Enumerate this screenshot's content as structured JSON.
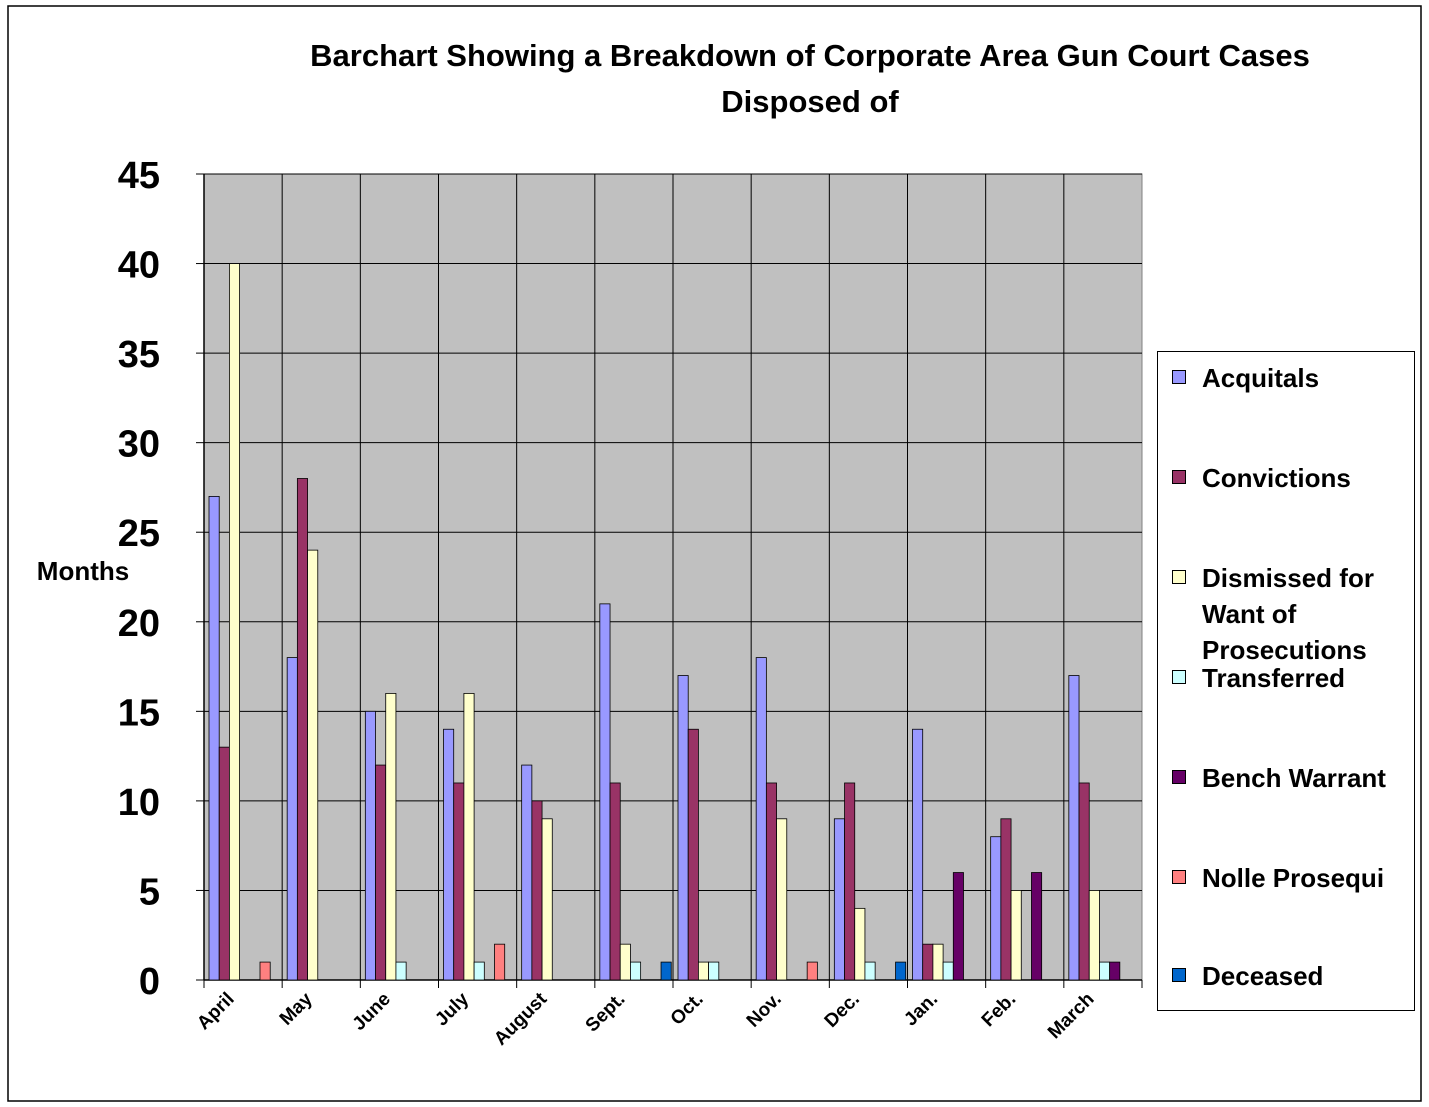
{
  "chart_data": {
    "type": "bar",
    "title": "Barchart Showing a Breakdown of Corporate Area Gun Court Cases Disposed of",
    "y_label": "Months",
    "categories": [
      "April",
      "May",
      "June",
      "July",
      "August",
      "Sept.",
      "Oct.",
      "Nov.",
      "Dec.",
      "Jan.",
      "Feb.",
      "March"
    ],
    "series": [
      {
        "name": "Acquitals",
        "color": "#9999ff",
        "values": [
          27,
          18,
          15,
          14,
          12,
          21,
          17,
          18,
          9,
          14,
          8,
          17
        ]
      },
      {
        "name": "Convictions",
        "color": "#993366",
        "values": [
          13,
          28,
          12,
          11,
          10,
          11,
          14,
          11,
          11,
          2,
          9,
          11
        ]
      },
      {
        "name": "Dismissed for Want of Prosecutions",
        "color": "#ffffcc",
        "values": [
          40,
          24,
          16,
          16,
          9,
          2,
          1,
          9,
          4,
          2,
          5,
          5
        ]
      },
      {
        "name": "Transferred",
        "color": "#ccffff",
        "values": [
          0,
          0,
          1,
          1,
          0,
          1,
          1,
          0,
          1,
          1,
          0,
          1
        ]
      },
      {
        "name": "Bench Warrant",
        "color": "#660066",
        "values": [
          0,
          0,
          0,
          0,
          0,
          0,
          0,
          0,
          0,
          6,
          6,
          1
        ]
      },
      {
        "name": "Nolle Prosequi",
        "color": "#ff8080",
        "values": [
          1,
          0,
          0,
          2,
          0,
          0,
          0,
          1,
          0,
          0,
          0,
          0
        ]
      },
      {
        "name": "Deceased",
        "color": "#0066cc",
        "values": [
          0,
          0,
          0,
          0,
          0,
          1,
          0,
          0,
          1,
          0,
          0,
          0
        ]
      }
    ],
    "ylim": [
      0,
      45
    ],
    "yticks": [
      0,
      5,
      10,
      15,
      20,
      25,
      30,
      35,
      40,
      45
    ],
    "grid": true,
    "plot_background": "#c0c0c0",
    "legend": "right"
  }
}
